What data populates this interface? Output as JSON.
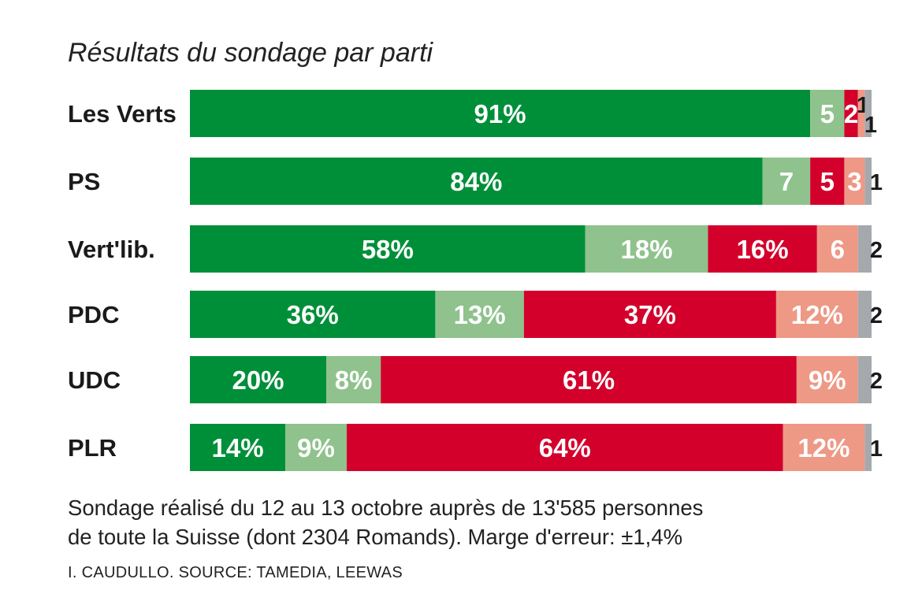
{
  "chart_data": {
    "type": "bar",
    "orientation": "horizontal",
    "stacked": true,
    "normalized": true,
    "title": "Résultats du sondage par parti",
    "categories": [
      "Les Verts",
      "PS",
      "Vert'lib.",
      "PDC",
      "UDC",
      "PLR"
    ],
    "series": [
      {
        "name": "dark green",
        "color": "#008f39",
        "values": [
          91,
          84,
          58,
          36,
          20,
          14
        ]
      },
      {
        "name": "light green",
        "color": "#8fc28c",
        "values": [
          5,
          7,
          18,
          13,
          8,
          9
        ]
      },
      {
        "name": "red",
        "color": "#d3002c",
        "values": [
          2,
          5,
          16,
          37,
          61,
          64
        ]
      },
      {
        "name": "salmon",
        "color": "#ee9886",
        "values": [
          1,
          3,
          6,
          12,
          9,
          12
        ]
      },
      {
        "name": "grey",
        "color": "#a5a9ad",
        "values": [
          1,
          1,
          2,
          2,
          2,
          1
        ]
      }
    ],
    "data_labels": [
      [
        "91%",
        "5",
        "2",
        "1",
        "1"
      ],
      [
        "84%",
        "7",
        "5",
        "3",
        "1"
      ],
      [
        "58%",
        "18%",
        "16%",
        "6",
        "2"
      ],
      [
        "36%",
        "13%",
        "37%",
        "12%",
        "2"
      ],
      [
        "20%",
        "8%",
        "61%",
        "9%",
        "2"
      ],
      [
        "14%",
        "9%",
        "64%",
        "12%",
        "1"
      ]
    ],
    "xlim": [
      0,
      100
    ],
    "legend": "none",
    "grid": false
  },
  "footer": {
    "note_line1": "Sondage réalisé du 12 au 13 octobre auprès de 13'585 personnes",
    "note_line2": "de toute la Suisse (dont 2304 Romands). Marge d'erreur: ±1,4%",
    "credit": "I. CAUDULLO. SOURCE: TAMEDIA, LEEWAS"
  }
}
